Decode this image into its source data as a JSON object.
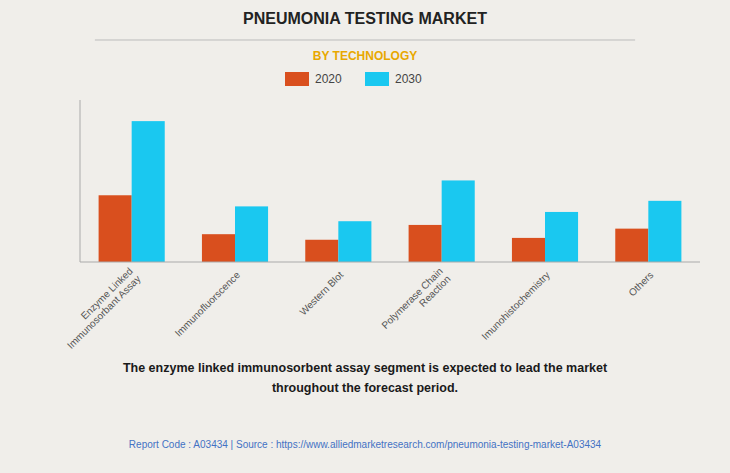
{
  "chart_data": {
    "type": "bar",
    "title": "PNEUMONIA TESTING MARKET",
    "subtitle": "BY TECHNOLOGY",
    "categories": [
      "Enzyme Linked\nImmunosorbant Assay",
      "Immunofluorscence",
      "Western Blot",
      "Polymerase Chain\nReaction",
      "Imunohistochemistry",
      "Others"
    ],
    "series": [
      {
        "name": "2020",
        "color": "#d94f1e",
        "values": [
          1.8,
          0.75,
          0.6,
          1.0,
          0.65,
          0.9
        ]
      },
      {
        "name": "2030",
        "color": "#1ac8f0",
        "values": [
          3.8,
          1.5,
          1.1,
          2.2,
          1.35,
          1.65
        ]
      }
    ],
    "ylim": [
      0,
      4.37
    ],
    "grid": false,
    "legend": "top",
    "tick_labels": "x",
    "annotations": [
      "The enzyme linked immunosorbent assay segment is expected to lead the market\nthroughout the forecast period.",
      "Report Code : A03434  |  Source : https://www.alliedmarketresearch.com/pneumonia-testing-market-A03434"
    ]
  }
}
